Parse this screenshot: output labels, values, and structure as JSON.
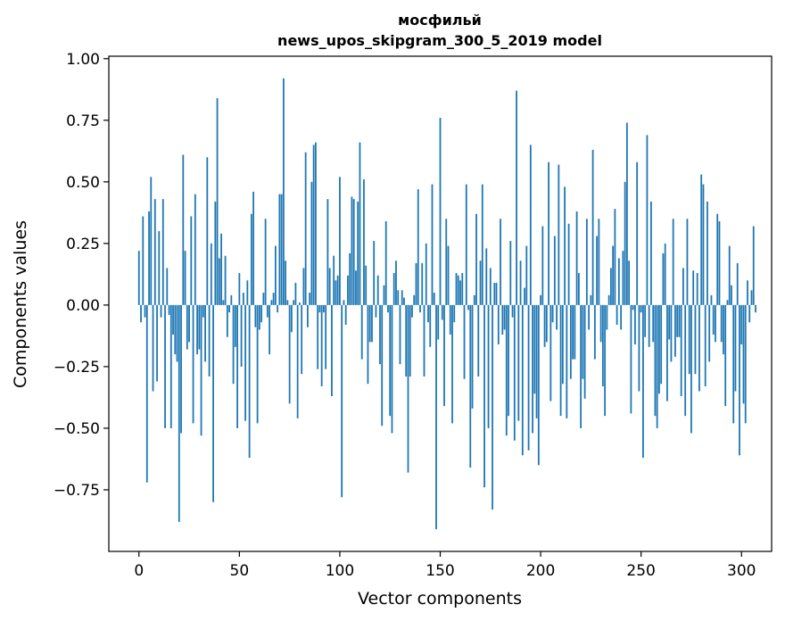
{
  "chart_data": {
    "type": "bar",
    "title_line1": "мосфильй",
    "title_line2": "news_upos_skipgram_300_5_2019 model",
    "xlabel": "Vector components",
    "ylabel": "Components values",
    "xlim": [
      -15,
      315
    ],
    "ylim": [
      -1.0,
      1.01
    ],
    "xticks": [
      0,
      50,
      100,
      150,
      200,
      250,
      300
    ],
    "xtick_labels": [
      "0",
      "50",
      "100",
      "150",
      "200",
      "250",
      "300"
    ],
    "yticks": [
      1.0,
      0.75,
      0.5,
      0.25,
      0.0,
      -0.25,
      -0.5,
      -0.75
    ],
    "ytick_labels": [
      "1.00",
      "0.75",
      "0.50",
      "0.25",
      "0.00",
      "−0.25",
      "−0.50",
      "−0.75"
    ],
    "bar_color": "#1f77b4",
    "values": [
      0.22,
      -0.07,
      0.36,
      -0.05,
      -0.72,
      0.38,
      0.52,
      -0.35,
      0.43,
      -0.31,
      0.3,
      -0.05,
      0.43,
      -0.5,
      0.15,
      -0.04,
      -0.5,
      -0.12,
      -0.2,
      -0.23,
      -0.88,
      -0.52,
      0.61,
      0.22,
      -0.18,
      -0.15,
      0.36,
      -0.48,
      0.45,
      -0.2,
      -0.18,
      -0.53,
      -0.05,
      -0.23,
      0.6,
      -0.29,
      0.25,
      -0.8,
      0.42,
      0.84,
      0.19,
      0.29,
      0.02,
      0.2,
      -0.13,
      -0.03,
      0.04,
      -0.32,
      -0.17,
      -0.5,
      0.13,
      -0.25,
      0.05,
      -0.47,
      0.1,
      -0.62,
      0.37,
      0.46,
      -0.09,
      -0.48,
      -0.1,
      -0.07,
      0.05,
      0.35,
      -0.05,
      -0.2,
      0.02,
      0.05,
      0.24,
      -0.03,
      0.45,
      0.45,
      0.92,
      0.18,
      0.02,
      -0.4,
      -0.11,
      0.02,
      0.09,
      -0.46,
      0.01,
      -0.28,
      0.15,
      0.62,
      -0.09,
      0.05,
      0.5,
      0.65,
      0.66,
      -0.26,
      -0.03,
      -0.33,
      -0.03,
      -0.26,
      0.43,
      0.15,
      -0.37,
      0.2,
      0.1,
      0.12,
      0.52,
      -0.78,
      0.02,
      -0.08,
      0.12,
      0.21,
      0.44,
      0.43,
      0.14,
      0.42,
      0.66,
      -0.22,
      0.51,
      0.16,
      -0.32,
      -0.15,
      -0.15,
      0.26,
      -0.05,
      0.12,
      -0.24,
      -0.49,
      0.08,
      0.34,
      -0.03,
      -0.45,
      -0.52,
      0.13,
      0.18,
      0.06,
      -0.24,
      0.06,
      0.03,
      -0.29,
      -0.68,
      -0.29,
      -0.05,
      0.04,
      0.17,
      0.47,
      -0.03,
      0.17,
      -0.29,
      0.25,
      -0.07,
      -0.17,
      0.49,
      0.05,
      -0.91,
      -0.14,
      0.76,
      -0.06,
      -0.41,
      0.35,
      0.24,
      -0.12,
      -0.48,
      -0.07,
      0.13,
      0.12,
      0.1,
      0.13,
      -0.3,
      0.49,
      -0.02,
      -0.66,
      -0.42,
      0.04,
      0.37,
      -0.29,
      0.18,
      0.49,
      -0.74,
      0.23,
      -0.5,
      0.15,
      -0.83,
      0.09,
      0.09,
      -0.16,
      0.35,
      -0.12,
      -0.1,
      -0.53,
      -0.45,
      0.26,
      -0.05,
      -0.55,
      0.87,
      -0.47,
      0.18,
      -0.61,
      0.07,
      0.24,
      -0.59,
      0.65,
      -0.52,
      -0.36,
      -0.46,
      -0.65,
      0.04,
      0.32,
      -0.17,
      -0.15,
      0.58,
      -0.39,
      -0.07,
      0.28,
      -0.1,
      0.57,
      -0.45,
      -0.32,
      0.48,
      -0.46,
      0.33,
      -0.3,
      -0.22,
      -0.22,
      0.38,
      0.13,
      -0.5,
      -0.3,
      -0.38,
      0.35,
      -0.1,
      0.04,
      0.63,
      -0.22,
      0.28,
      0.35,
      -0.15,
      -0.33,
      -0.45,
      -0.1,
      0.04,
      0.15,
      0.24,
      0.39,
      -0.08,
      0.19,
      -0.1,
      0.22,
      0.5,
      0.74,
      0.18,
      -0.44,
      -0.02,
      -0.16,
      0.58,
      -0.35,
      -0.03,
      -0.62,
      -0.13,
      0.69,
      -0.17,
      0.42,
      -0.15,
      -0.45,
      -0.5,
      -0.36,
      -0.32,
      0.21,
      0.25,
      -0.39,
      -0.14,
      -0.23,
      0.35,
      -0.21,
      -0.13,
      -0.13,
      -0.37,
      0.15,
      -0.45,
      0.35,
      -0.28,
      -0.52,
      0.14,
      -0.28,
      0.13,
      -0.35,
      0.53,
      0.49,
      -0.33,
      0.42,
      -0.23,
      0.04,
      -0.12,
      -0.15,
      0.37,
      0.34,
      -0.15,
      -0.2,
      -0.41,
      0.02,
      0.24,
      0.08,
      -0.48,
      -0.35,
      0.17,
      -0.61,
      -0.16,
      -0.4,
      -0.48,
      0.1,
      -0.07,
      0.06,
      0.32,
      -0.03
    ]
  }
}
